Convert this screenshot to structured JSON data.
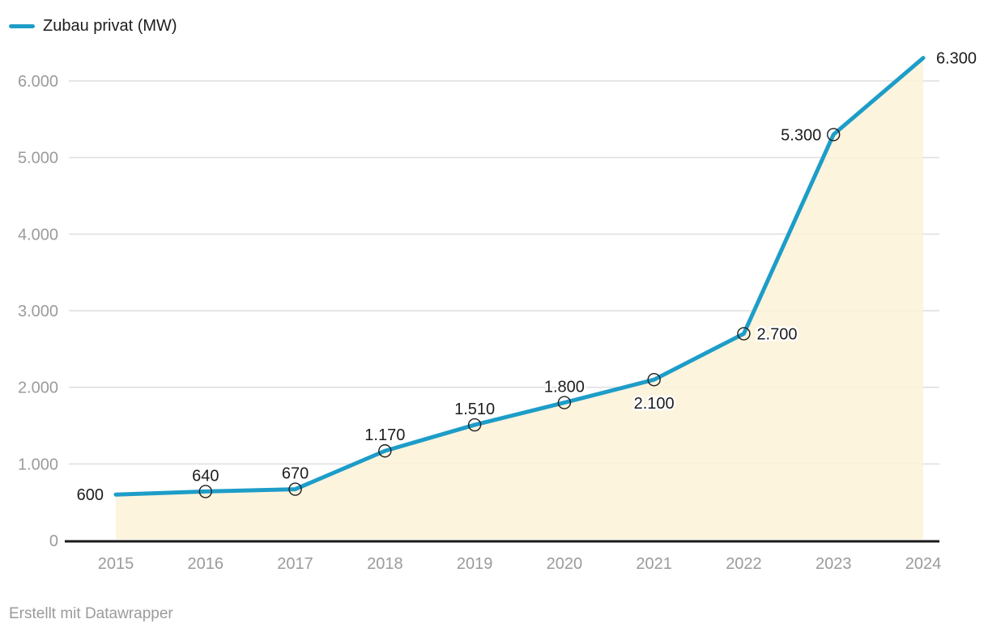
{
  "legend": {
    "label": "Zubau privat (MW)"
  },
  "footer": {
    "attribution": "Erstellt mit Datawrapper"
  },
  "colors": {
    "line": "#1d9dc8",
    "area_fill": "#fdf3da",
    "gridline": "#dedede",
    "axis_line": "#1a1a1a",
    "tick_label": "#9b9b9b",
    "data_label": "#1d1d1d",
    "marker_stroke": "#1d1d1d",
    "background": "#ffffff"
  },
  "chart_data": {
    "type": "area",
    "title": "",
    "series": [
      {
        "name": "Zubau privat (MW)",
        "values": [
          600,
          640,
          670,
          1170,
          1510,
          1800,
          2100,
          2700,
          5300,
          6300
        ]
      }
    ],
    "categories": [
      "2015",
      "2016",
      "2017",
      "2018",
      "2019",
      "2020",
      "2021",
      "2022",
      "2023",
      "2024"
    ],
    "value_labels": [
      "600",
      "640",
      "670",
      "1.170",
      "1.510",
      "1.800",
      "2.100",
      "2.700",
      "5.300",
      "6.300"
    ],
    "label_placement": [
      "left",
      "above",
      "above",
      "above",
      "above",
      "above",
      "below",
      "right",
      "left",
      "right"
    ],
    "point_markers": [
      false,
      true,
      true,
      true,
      true,
      true,
      true,
      true,
      true,
      false
    ],
    "xlabel": "",
    "ylabel": "",
    "y_tick_values": [
      0,
      1000,
      2000,
      3000,
      4000,
      5000,
      6000
    ],
    "y_tick_labels": [
      "0",
      "1.000",
      "2.000",
      "3.000",
      "4.000",
      "5.000",
      "6.000"
    ],
    "ylim": [
      0,
      6000
    ],
    "grid": "horizontal",
    "legend_position": "top-left",
    "area_fill": true
  }
}
